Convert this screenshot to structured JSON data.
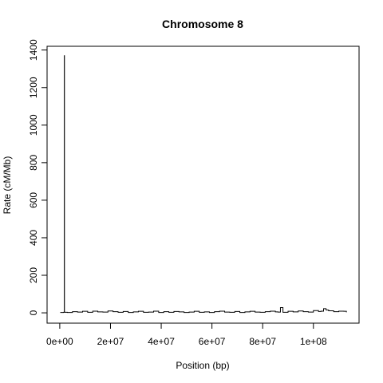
{
  "chart_data": {
    "type": "line",
    "title": "Chromosome 8",
    "xlabel": "Position (bp)",
    "ylabel": "Rate (cM/Mb)",
    "xlim": [
      -5000000,
      118000000
    ],
    "ylim": [
      -55,
      1420
    ],
    "grid": false,
    "legend": "none",
    "x_ticks": [
      {
        "value": 0,
        "label": "0e+00"
      },
      {
        "value": 20000000,
        "label": "2e+07"
      },
      {
        "value": 40000000,
        "label": "4e+07"
      },
      {
        "value": 60000000,
        "label": "6e+07"
      },
      {
        "value": 80000000,
        "label": "8e+07"
      },
      {
        "value": 100000000,
        "label": "1e+08"
      }
    ],
    "y_ticks": [
      {
        "value": 0,
        "label": "0"
      },
      {
        "value": 200,
        "label": "200"
      },
      {
        "value": 400,
        "label": "400"
      },
      {
        "value": 600,
        "label": "600"
      },
      {
        "value": 800,
        "label": "800"
      },
      {
        "value": 1000,
        "label": "1000"
      },
      {
        "value": 1200,
        "label": "1200"
      },
      {
        "value": 1400,
        "label": "1400"
      }
    ],
    "series": [
      {
        "color": "#000000",
        "x": [
          200000,
          1500000,
          1800000,
          1850000,
          1900000,
          3000000,
          5000000,
          7000000,
          9000000,
          11000000,
          13000000,
          15000000,
          17000000,
          19000000,
          21000000,
          23000000,
          25000000,
          27000000,
          29000000,
          31000000,
          33000000,
          35000000,
          37000000,
          39000000,
          41000000,
          43000000,
          45000000,
          47000000,
          49000000,
          51000000,
          53000000,
          55000000,
          57000000,
          59000000,
          61000000,
          63000000,
          65000000,
          67000000,
          69000000,
          71000000,
          73000000,
          75000000,
          77000000,
          79000000,
          81000000,
          83000000,
          85000000,
          86000000,
          87000000,
          88000000,
          90000000,
          92000000,
          94000000,
          96000000,
          98000000,
          100000000,
          102000000,
          103000000,
          104000000,
          105000000,
          106000000,
          108000000,
          110000000,
          112000000,
          113000000
        ],
        "y": [
          2,
          3,
          1370,
          5,
          3,
          2,
          6,
          4,
          8,
          3,
          9,
          5,
          4,
          10,
          6,
          3,
          7,
          2,
          5,
          8,
          3,
          4,
          9,
          2,
          6,
          3,
          7,
          5,
          2,
          4,
          8,
          3,
          5,
          2,
          6,
          9,
          4,
          3,
          7,
          2,
          5,
          8,
          4,
          3,
          6,
          9,
          5,
          4,
          28,
          3,
          8,
          5,
          10,
          6,
          4,
          12,
          7,
          9,
          22,
          15,
          11,
          6,
          9,
          8,
          3
        ]
      }
    ]
  }
}
